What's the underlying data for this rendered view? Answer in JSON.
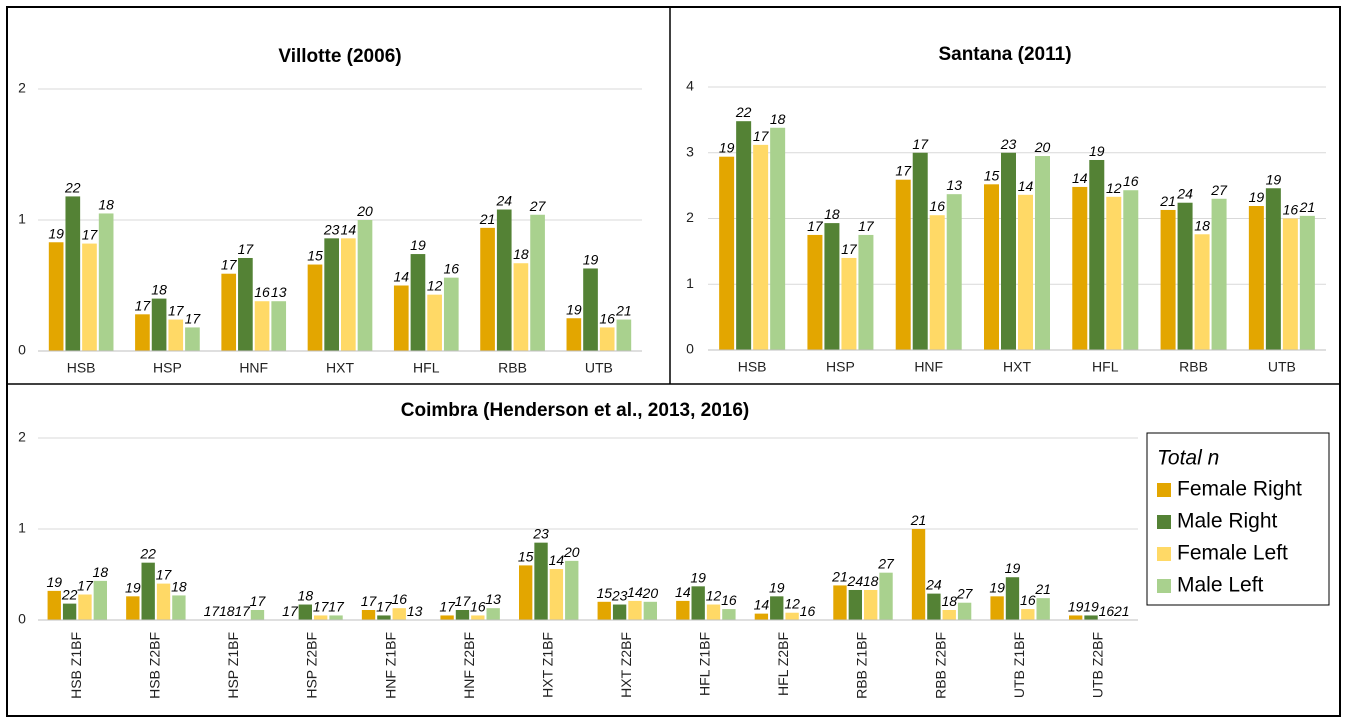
{
  "chart_data": [
    {
      "type": "bar",
      "title": "Villotte (2006)",
      "categories": [
        "HSB",
        "HSP",
        "HNF",
        "HXT",
        "HFL",
        "RBB",
        "UTB"
      ],
      "ylim": [
        0,
        2
      ],
      "yticks": [
        0,
        1,
        2
      ],
      "grid": true,
      "series": [
        {
          "color": "#e3a600",
          "values": [
            0.83,
            0.28,
            0.59,
            0.66,
            0.5,
            0.94,
            0.25
          ],
          "n": [
            19,
            17,
            17,
            15,
            14,
            21,
            19
          ]
        },
        {
          "color": "#548235",
          "values": [
            1.18,
            0.4,
            0.71,
            0.86,
            0.74,
            1.08,
            0.63
          ],
          "n": [
            22,
            18,
            17,
            23,
            19,
            24,
            19
          ]
        },
        {
          "color": "#ffd966",
          "values": [
            0.82,
            0.24,
            0.38,
            0.86,
            0.43,
            0.67,
            0.18
          ],
          "n": [
            17,
            17,
            16,
            14,
            12,
            18,
            16
          ]
        },
        {
          "color": "#a9d18e",
          "values": [
            1.05,
            0.18,
            0.38,
            1.0,
            0.56,
            1.04,
            0.24
          ],
          "n": [
            18,
            17,
            13,
            20,
            16,
            27,
            21
          ]
        }
      ]
    },
    {
      "type": "bar",
      "title": "Santana (2011)",
      "categories": [
        "HSB",
        "HSP",
        "HNF",
        "HXT",
        "HFL",
        "RBB",
        "UTB"
      ],
      "ylim": [
        0,
        4
      ],
      "yticks": [
        0,
        1,
        2,
        3,
        4
      ],
      "grid": true,
      "series": [
        {
          "color": "#e3a600",
          "values": [
            2.94,
            1.75,
            2.59,
            2.52,
            2.48,
            2.13,
            2.19
          ],
          "n": [
            19,
            17,
            17,
            15,
            14,
            21,
            19
          ]
        },
        {
          "color": "#548235",
          "values": [
            3.48,
            1.93,
            3.0,
            3.0,
            2.89,
            2.24,
            2.46
          ],
          "n": [
            22,
            18,
            17,
            23,
            19,
            24,
            19
          ]
        },
        {
          "color": "#ffd966",
          "values": [
            3.12,
            1.4,
            2.05,
            2.36,
            2.33,
            1.76,
            2.0
          ],
          "n": [
            17,
            17,
            16,
            14,
            12,
            18,
            16
          ]
        },
        {
          "color": "#a9d18e",
          "values": [
            3.38,
            1.75,
            2.37,
            2.95,
            2.43,
            2.3,
            2.04
          ],
          "n": [
            18,
            17,
            13,
            20,
            16,
            27,
            21
          ]
        }
      ]
    },
    {
      "type": "bar",
      "title": "Coimbra (Henderson et al., 2013, 2016)",
      "categories": [
        "HSB Z1BF",
        "HSB Z2BF",
        "HSP Z1BF",
        "HSP Z2BF",
        "HNF Z1BF",
        "HNF Z2BF",
        "HXT Z1BF",
        "HXT Z2BF",
        "HFL Z1BF",
        "HFL Z2BF",
        "RBB Z1BF",
        "RBB Z2BF",
        "UTB Z1BF",
        "UTB Z2BF"
      ],
      "ylim": [
        0,
        2
      ],
      "yticks": [
        0,
        1,
        2
      ],
      "grid": true,
      "rotate_labels": true,
      "legend_title": "Total n",
      "legend": "right",
      "series": [
        {
          "name": "Female Right",
          "color": "#e3a600",
          "values": [
            0.32,
            0.26,
            0,
            0,
            0.11,
            0.05,
            0.6,
            0.2,
            0.21,
            0.07,
            0.38,
            1.0,
            0.26,
            0.05
          ],
          "n": [
            19,
            19,
            17,
            17,
            17,
            17,
            15,
            15,
            14,
            14,
            21,
            21,
            19,
            19
          ]
        },
        {
          "name": "Male Right",
          "color": "#548235",
          "values": [
            0.18,
            0.63,
            0,
            0.17,
            0.05,
            0.11,
            0.85,
            0.17,
            0.37,
            0.26,
            0.33,
            0.29,
            0.47,
            0.05
          ],
          "n": [
            22,
            22,
            18,
            18,
            17,
            17,
            23,
            23,
            19,
            19,
            24,
            24,
            19,
            19
          ]
        },
        {
          "name": "Female Left",
          "color": "#ffd966",
          "values": [
            0.28,
            0.4,
            0,
            0.05,
            0.13,
            0.05,
            0.56,
            0.21,
            0.17,
            0.08,
            0.33,
            0.11,
            0.12,
            0
          ],
          "n": [
            17,
            17,
            17,
            17,
            16,
            16,
            14,
            14,
            12,
            12,
            18,
            18,
            16,
            16
          ]
        },
        {
          "name": "Male Left",
          "color": "#a9d18e",
          "values": [
            0.43,
            0.27,
            0.11,
            0.05,
            0,
            0.13,
            0.65,
            0.2,
            0.12,
            0,
            0.52,
            0.19,
            0.24,
            0
          ],
          "n": [
            18,
            18,
            17,
            17,
            13,
            13,
            20,
            20,
            16,
            16,
            27,
            27,
            21,
            21
          ]
        }
      ]
    }
  ]
}
